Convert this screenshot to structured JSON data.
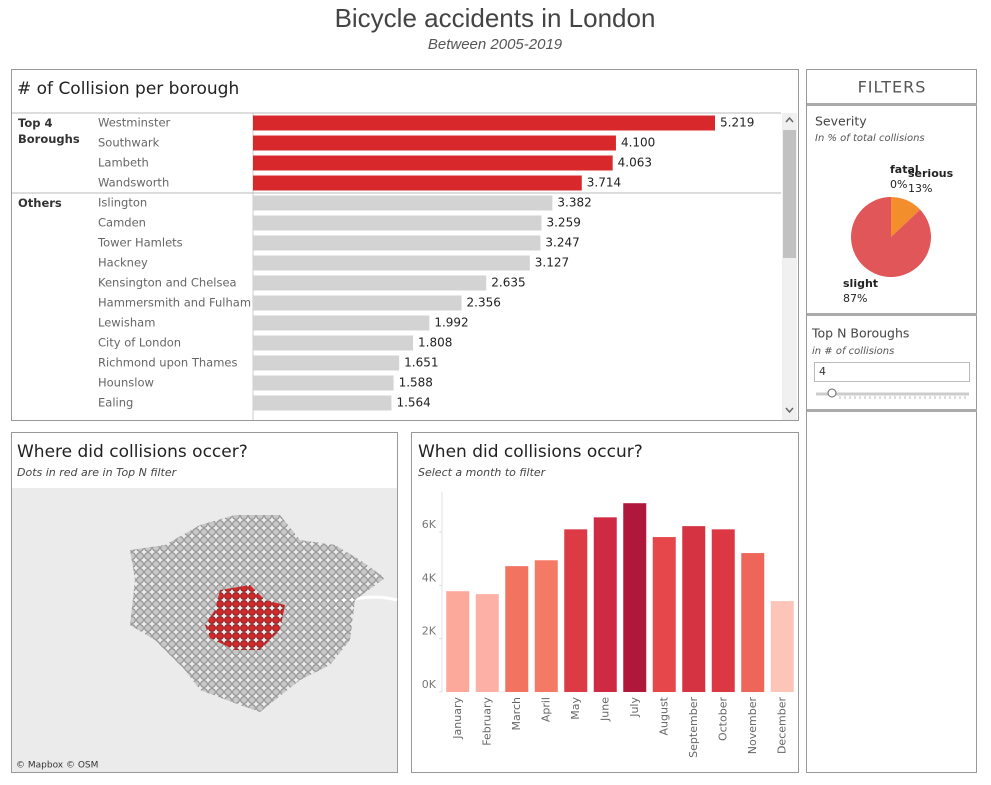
{
  "header": {
    "title": "Bicycle accidents in London",
    "subtitle": "Between 2005-2019"
  },
  "chart_data": [
    {
      "type": "hbar",
      "title": "# of Collision per borough",
      "groups": [
        {
          "name": "Top 4 Boroughs",
          "color": "#d9282c",
          "categories": [
            "Westminster",
            "Southwark",
            "Lambeth",
            "Wandsworth"
          ],
          "values": [
            5.219,
            4.1,
            4.063,
            3.714
          ],
          "value_labels": [
            "5.219",
            "4.100",
            "4.063",
            "3.714"
          ]
        },
        {
          "name": "Others",
          "color": "#d3d3d3",
          "categories": [
            "Islington",
            "Camden",
            "Tower Hamlets",
            "Hackney",
            "Kensington and Chelsea",
            "Hammersmith and Fulham",
            "Lewisham",
            "City of London",
            "Richmond upon Thames",
            "Hounslow",
            "Ealing"
          ],
          "values": [
            3.382,
            3.259,
            3.247,
            3.127,
            2.635,
            2.356,
            1.992,
            1.808,
            1.651,
            1.588,
            1.564
          ],
          "value_labels": [
            "3.382",
            "3.259",
            "3.247",
            "3.127",
            "2.635",
            "2.356",
            "1.992",
            "1.808",
            "1.651",
            "1.588",
            "1.564"
          ]
        }
      ]
    },
    {
      "type": "map",
      "title": "Where did collisions occer?",
      "subtitle": "Dots in red are in Top N filter",
      "attribution": "© Mapbox © OSM"
    },
    {
      "type": "bar",
      "title": "When did collisions occur?",
      "subtitle": "Select a month to filter",
      "categories": [
        "January",
        "February",
        "March",
        "April",
        "May",
        "June",
        "July",
        "August",
        "September",
        "October",
        "November",
        "December"
      ],
      "values": [
        3780,
        3670,
        4720,
        4940,
        6100,
        6550,
        7080,
        5810,
        6220,
        6100,
        5210,
        3410
      ],
      "colors": [
        "#fca99c",
        "#fdb0a5",
        "#f2735f",
        "#f47a66",
        "#dc3a45",
        "#cf2a43",
        "#b0183b",
        "#e6474a",
        "#d53342",
        "#db3843",
        "#ee6659",
        "#fdc4b8"
      ],
      "ylim": [
        0,
        7500
      ],
      "yticks": [
        {
          "value": 0,
          "label": "0K"
        },
        {
          "value": 2000,
          "label": "2K"
        },
        {
          "value": 4000,
          "label": "4K"
        },
        {
          "value": 6000,
          "label": "6K"
        }
      ]
    },
    {
      "type": "pie",
      "title": "Severity",
      "subtitle": "In % of total collisions",
      "categories": [
        "fatal",
        "serious",
        "slight"
      ],
      "values": [
        0,
        13,
        87
      ],
      "value_labels": [
        "0%",
        "13%",
        "87%"
      ],
      "colors": [
        "#7f7f7f",
        "#f28e2b",
        "#e15759"
      ]
    }
  ],
  "filters": {
    "title": "FILTERS",
    "top_n": {
      "title": "Top N Boroughs",
      "subtitle": "in # of collisions",
      "value": 4
    }
  }
}
